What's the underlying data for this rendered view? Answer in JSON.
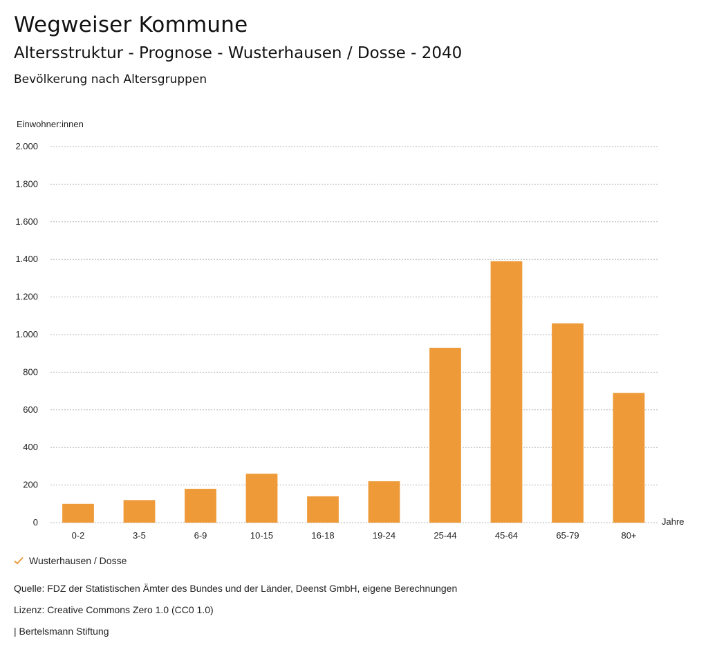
{
  "header": {
    "title": "Wegweiser Kommune",
    "subtitle": "Altersstruktur - Prognose - Wusterhausen / Dosse - 2040",
    "chart_title": "Bevölkerung nach Altersgruppen"
  },
  "chart_data": {
    "type": "bar",
    "ylabel": "Einwohner:innen",
    "xlabel": "Jahre",
    "ylim": [
      0,
      2000
    ],
    "yticks": [
      0,
      200,
      400,
      600,
      800,
      1000,
      1200,
      1400,
      1600,
      1800,
      2000
    ],
    "ytick_labels": [
      "0",
      "200",
      "400",
      "600",
      "800",
      "1.000",
      "1.200",
      "1.400",
      "1.600",
      "1.800",
      "2.000"
    ],
    "grid": true,
    "categories": [
      "0-2",
      "3-5",
      "6-9",
      "10-15",
      "16-18",
      "19-24",
      "25-44",
      "45-64",
      "65-79",
      "80+"
    ],
    "series": [
      {
        "name": "Wusterhausen / Dosse",
        "color": "#ee9a38",
        "values": [
          100,
          120,
          180,
          260,
          140,
          220,
          930,
          1390,
          1060,
          690
        ]
      }
    ],
    "legend": "bottom-left"
  },
  "footer": {
    "source": "Quelle: FDZ der Statistischen Ämter des Bundes und der Länder, Deenst GmbH, eigene Berechnungen",
    "license": "Lizenz: Creative Commons Zero 1.0 (CC0 1.0)",
    "publisher": "| Bertelsmann Stiftung"
  }
}
